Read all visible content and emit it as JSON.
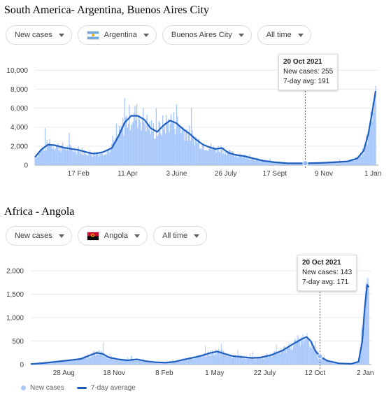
{
  "colors": {
    "bar": "#a8c7fa",
    "avg_line": "#1f5fbf",
    "grid": "#e8eaed",
    "axis": "#9aa0a6",
    "marker": "#8ab4f8"
  },
  "panels": [
    {
      "title": "South America- Argentina, Buenos Aires City",
      "filters": [
        {
          "label": "New cases",
          "flag": ""
        },
        {
          "label": "Argentina",
          "flag": "argentina-flag"
        },
        {
          "label": "Buenos Aires City",
          "flag": ""
        },
        {
          "label": "All time",
          "flag": ""
        }
      ],
      "tooltip": {
        "date": "20 Oct 2021",
        "cases_text": "New cases: 255",
        "avg_text": "7-day avg: 191"
      }
    },
    {
      "title": "Africa - Angola",
      "filters": [
        {
          "label": "New cases",
          "flag": ""
        },
        {
          "label": "Angola",
          "flag": "angola-flag"
        },
        {
          "label": "All time",
          "flag": ""
        }
      ],
      "tooltip": {
        "date": "20 Oct 2021",
        "cases_text": "New cases: 143",
        "avg_text": "7-day avg: 171"
      }
    }
  ],
  "legend": {
    "cases": "New cases",
    "average": "7-day average"
  },
  "chart_data": [
    {
      "type": "area",
      "title": "South America- Argentina, Buenos Aires City",
      "xlabel": "",
      "ylabel": "",
      "x_start": "2021-01-01",
      "x_end": "2022-01-07",
      "ylim": [
        0,
        11500
      ],
      "yticks": [
        0,
        2000,
        4000,
        6000,
        8000,
        10000
      ],
      "ytick_labels": [
        "0",
        "2,000",
        "4,000",
        "6,000",
        "8,000",
        "10,000"
      ],
      "xticks": [
        {
          "date": "2021-02-17",
          "label": "17 Feb"
        },
        {
          "date": "2021-04-11",
          "label": "11 Apr"
        },
        {
          "date": "2021-06-03",
          "label": "3 June"
        },
        {
          "date": "2021-07-26",
          "label": "26 July"
        },
        {
          "date": "2021-09-17",
          "label": "17 Sept"
        },
        {
          "date": "2021-11-09",
          "label": "9 Nov"
        },
        {
          "date": "2022-01-01",
          "label": "1 Jan"
        }
      ],
      "highlight": {
        "date": "2021-10-20",
        "new_cases": 255,
        "avg": 191
      },
      "series": [
        {
          "name": "7-day average",
          "points": [
            [
              "2021-01-01",
              850
            ],
            [
              "2021-01-08",
              1650
            ],
            [
              "2021-01-15",
              2150
            ],
            [
              "2021-01-22",
              2100
            ],
            [
              "2021-02-01",
              1850
            ],
            [
              "2021-02-10",
              1700
            ],
            [
              "2021-02-17",
              1600
            ],
            [
              "2021-02-24",
              1400
            ],
            [
              "2021-03-05",
              1200
            ],
            [
              "2021-03-15",
              1350
            ],
            [
              "2021-03-25",
              1800
            ],
            [
              "2021-04-01",
              3000
            ],
            [
              "2021-04-08",
              4500
            ],
            [
              "2021-04-15",
              5200
            ],
            [
              "2021-04-22",
              5200
            ],
            [
              "2021-04-29",
              4800
            ],
            [
              "2021-05-06",
              3900
            ],
            [
              "2021-05-13",
              3500
            ],
            [
              "2021-05-20",
              4200
            ],
            [
              "2021-05-27",
              4700
            ],
            [
              "2021-06-03",
              4400
            ],
            [
              "2021-06-10",
              3800
            ],
            [
              "2021-06-17",
              3300
            ],
            [
              "2021-06-24",
              2700
            ],
            [
              "2021-07-01",
              2200
            ],
            [
              "2021-07-08",
              1900
            ],
            [
              "2021-07-15",
              1700
            ],
            [
              "2021-07-22",
              1800
            ],
            [
              "2021-07-29",
              1300
            ],
            [
              "2021-08-05",
              1100
            ],
            [
              "2021-08-15",
              950
            ],
            [
              "2021-08-25",
              700
            ],
            [
              "2021-09-05",
              450
            ],
            [
              "2021-09-17",
              300
            ],
            [
              "2021-10-01",
              190
            ],
            [
              "2021-10-20",
              191
            ],
            [
              "2021-11-05",
              230
            ],
            [
              "2021-11-20",
              300
            ],
            [
              "2021-12-05",
              400
            ],
            [
              "2021-12-15",
              700
            ],
            [
              "2021-12-22",
              1500
            ],
            [
              "2021-12-27",
              3200
            ],
            [
              "2022-01-01",
              6000
            ],
            [
              "2022-01-04",
              7800
            ]
          ]
        }
      ]
    },
    {
      "type": "area",
      "title": "Africa - Angola",
      "xlabel": "",
      "ylabel": "",
      "x_start": "2020-07-05",
      "x_end": "2022-01-12",
      "ylim": [
        0,
        2300
      ],
      "yticks": [
        0,
        500,
        1000,
        1500,
        2000
      ],
      "ytick_labels": [
        "0",
        "500",
        "1,000",
        "1,500",
        "2,000"
      ],
      "xticks": [
        {
          "date": "2020-08-28",
          "label": "28 Aug"
        },
        {
          "date": "2020-11-18",
          "label": "18 Nov"
        },
        {
          "date": "2021-02-08",
          "label": "8 Feb"
        },
        {
          "date": "2021-05-01",
          "label": "1 May"
        },
        {
          "date": "2021-07-22",
          "label": "22 July"
        },
        {
          "date": "2021-10-12",
          "label": "12 Oct"
        },
        {
          "date": "2022-01-02",
          "label": "2 Jan"
        }
      ],
      "highlight": {
        "date": "2021-10-20",
        "new_cases": 143,
        "avg": 171
      },
      "legend_position": "bottom-left",
      "series": [
        {
          "name": "7-day average",
          "points": [
            [
              "2020-07-05",
              10
            ],
            [
              "2020-07-25",
              30
            ],
            [
              "2020-08-15",
              60
            ],
            [
              "2020-09-05",
              90
            ],
            [
              "2020-09-25",
              120
            ],
            [
              "2020-10-10",
              200
            ],
            [
              "2020-10-20",
              250
            ],
            [
              "2020-10-30",
              230
            ],
            [
              "2020-11-10",
              150
            ],
            [
              "2020-11-25",
              110
            ],
            [
              "2020-12-10",
              90
            ],
            [
              "2020-12-25",
              110
            ],
            [
              "2021-01-10",
              70
            ],
            [
              "2021-01-25",
              50
            ],
            [
              "2021-02-10",
              40
            ],
            [
              "2021-02-25",
              60
            ],
            [
              "2021-03-10",
              100
            ],
            [
              "2021-03-25",
              140
            ],
            [
              "2021-04-10",
              190
            ],
            [
              "2021-04-25",
              250
            ],
            [
              "2021-05-05",
              280
            ],
            [
              "2021-05-15",
              240
            ],
            [
              "2021-05-30",
              180
            ],
            [
              "2021-06-15",
              160
            ],
            [
              "2021-07-01",
              140
            ],
            [
              "2021-07-15",
              150
            ],
            [
              "2021-08-01",
              200
            ],
            [
              "2021-08-20",
              300
            ],
            [
              "2021-09-05",
              430
            ],
            [
              "2021-09-20",
              540
            ],
            [
              "2021-09-28",
              590
            ],
            [
              "2021-10-05",
              500
            ],
            [
              "2021-10-12",
              300
            ],
            [
              "2021-10-20",
              171
            ],
            [
              "2021-11-01",
              80
            ],
            [
              "2021-11-20",
              25
            ],
            [
              "2021-12-10",
              15
            ],
            [
              "2021-12-22",
              60
            ],
            [
              "2021-12-28",
              500
            ],
            [
              "2022-01-01",
              1200
            ],
            [
              "2022-01-05",
              1700
            ],
            [
              "2022-01-08",
              1650
            ]
          ]
        }
      ]
    }
  ]
}
